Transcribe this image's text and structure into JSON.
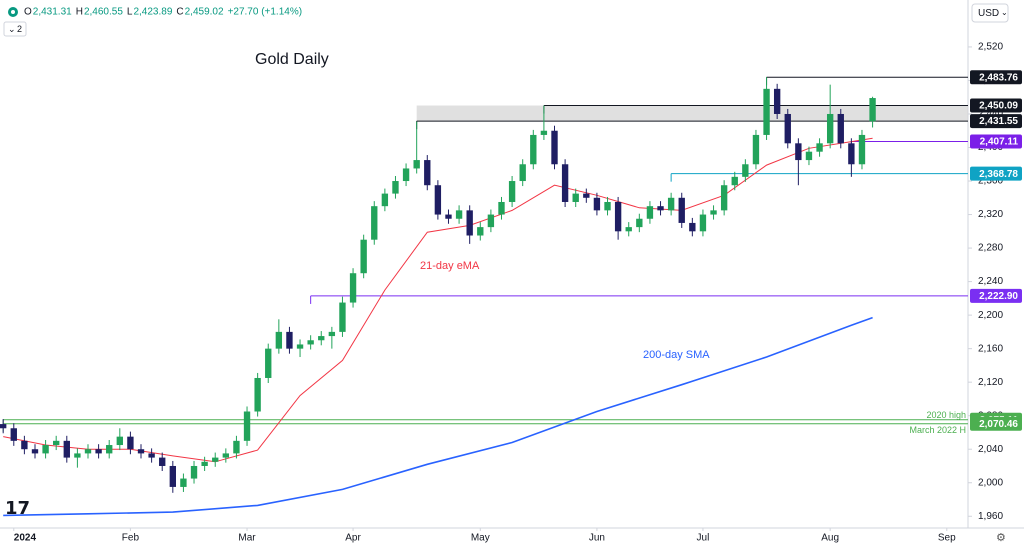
{
  "chart_data": {
    "type": "candlestick",
    "title": "Gold Daily",
    "currency": "USD",
    "interval_badge": "2",
    "header": [
      {
        "key": "O",
        "value": "2,431.31"
      },
      {
        "key": "H",
        "value": "2,460.55"
      },
      {
        "key": "L",
        "value": "2,423.89"
      },
      {
        "key": "C",
        "value": "2,459.02"
      }
    ],
    "change": "+27.70 (+1.14%)",
    "up_color": "#22a35a",
    "down_color": "#1f1e63",
    "xlim": [
      -0.3,
      91
    ],
    "xticks": [
      {
        "value": 1,
        "label": "2024"
      },
      {
        "value": 12,
        "label": "Feb"
      },
      {
        "value": 23,
        "label": "Mar"
      },
      {
        "value": 33,
        "label": "Apr"
      },
      {
        "value": 45,
        "label": "May"
      },
      {
        "value": 56,
        "label": "Jun"
      },
      {
        "value": 66,
        "label": "Jul"
      },
      {
        "value": 78,
        "label": "Aug"
      },
      {
        "value": 89,
        "label": "Sep"
      }
    ],
    "ylim": [
      1946,
      2576
    ],
    "yticks": [
      {
        "value": 1960,
        "label": "1,960"
      },
      {
        "value": 2000,
        "label": "2,000"
      },
      {
        "value": 2040,
        "label": "2,040"
      },
      {
        "value": 2080,
        "label": "2,080"
      },
      {
        "value": 2120,
        "label": "2,120"
      },
      {
        "value": 2160,
        "label": "2,160"
      },
      {
        "value": 2200,
        "label": "2,200"
      },
      {
        "value": 2240,
        "label": "2,240"
      },
      {
        "value": 2280,
        "label": "2,280"
      },
      {
        "value": 2320,
        "label": "2,320"
      },
      {
        "value": 2360,
        "label": "2,360"
      },
      {
        "value": 2400,
        "label": "2,400"
      },
      {
        "value": 2440,
        "label": "2,440"
      },
      {
        "value": 2480,
        "label": "2,480"
      },
      {
        "value": 2520,
        "label": "2,520"
      }
    ],
    "grid": false,
    "ohlc": {
      "open": [
        2070,
        2065,
        2050,
        2040,
        2035,
        2045,
        2050,
        2030,
        2035,
        2040,
        2035,
        2045,
        2055,
        2040,
        2035,
        2030,
        2020,
        1995,
        2005,
        2020,
        2025,
        2030,
        2035,
        2050,
        2085,
        2125,
        2160,
        2180,
        2160,
        2165,
        2170,
        2175,
        2180,
        2215,
        2250,
        2290,
        2330,
        2345,
        2360,
        2375,
        2385,
        2355,
        2320,
        2315,
        2325,
        2295,
        2305,
        2320,
        2335,
        2360,
        2380,
        2415,
        2420,
        2380,
        2335,
        2345,
        2340,
        2325,
        2335,
        2300,
        2305,
        2315,
        2330,
        2325,
        2340,
        2310,
        2300,
        2320,
        2325,
        2355,
        2365,
        2380,
        2415,
        2470,
        2440,
        2405,
        2385,
        2395,
        2405,
        2440,
        2405,
        2380,
        2431.31
      ],
      "high": [
        2076,
        2071,
        2056,
        2046,
        2051,
        2056,
        2056,
        2041,
        2046,
        2046,
        2051,
        2065,
        2061,
        2046,
        2041,
        2036,
        2026,
        2011,
        2026,
        2031,
        2036,
        2041,
        2056,
        2091,
        2131,
        2166,
        2195,
        2186,
        2171,
        2176,
        2181,
        2186,
        2222,
        2256,
        2296,
        2336,
        2351,
        2366,
        2381,
        2431,
        2391,
        2361,
        2326,
        2331,
        2331,
        2311,
        2326,
        2341,
        2366,
        2386,
        2421,
        2450,
        2426,
        2386,
        2351,
        2351,
        2346,
        2341,
        2341,
        2311,
        2321,
        2336,
        2336,
        2346,
        2346,
        2316,
        2326,
        2331,
        2361,
        2371,
        2386,
        2421,
        2484,
        2476,
        2446,
        2411,
        2401,
        2411,
        2475,
        2446,
        2411,
        2421,
        2460.55
      ],
      "low": [
        2059,
        2044,
        2034,
        2029,
        2029,
        2039,
        2024,
        2018,
        2029,
        2029,
        2029,
        2039,
        2034,
        2029,
        2024,
        2014,
        1988,
        1989,
        1999,
        2014,
        2019,
        2024,
        2029,
        2044,
        2079,
        2119,
        2154,
        2154,
        2150,
        2159,
        2164,
        2160,
        2174,
        2209,
        2244,
        2284,
        2324,
        2339,
        2354,
        2369,
        2349,
        2314,
        2309,
        2309,
        2285,
        2289,
        2299,
        2314,
        2329,
        2354,
        2374,
        2409,
        2374,
        2329,
        2329,
        2334,
        2319,
        2319,
        2290,
        2294,
        2299,
        2309,
        2319,
        2319,
        2304,
        2294,
        2294,
        2314,
        2319,
        2349,
        2359,
        2374,
        2409,
        2434,
        2399,
        2355,
        2379,
        2389,
        2399,
        2399,
        2365,
        2374,
        2423.89
      ],
      "close": [
        2065,
        2050,
        2040,
        2035,
        2045,
        2050,
        2030,
        2035,
        2040,
        2035,
        2045,
        2055,
        2040,
        2035,
        2030,
        2020,
        1995,
        2005,
        2020,
        2025,
        2030,
        2035,
        2050,
        2085,
        2125,
        2160,
        2180,
        2160,
        2165,
        2170,
        2175,
        2180,
        2215,
        2250,
        2290,
        2330,
        2345,
        2360,
        2375,
        2385,
        2355,
        2320,
        2315,
        2325,
        2295,
        2305,
        2320,
        2335,
        2360,
        2380,
        2415,
        2420,
        2380,
        2335,
        2345,
        2340,
        2325,
        2335,
        2300,
        2305,
        2315,
        2330,
        2325,
        2340,
        2310,
        2300,
        2320,
        2325,
        2355,
        2365,
        2380,
        2415,
        2470,
        2440,
        2405,
        2385,
        2395,
        2405,
        2440,
        2405,
        2380,
        2415,
        2459.02
      ]
    },
    "lines": [
      {
        "name": "21-day eMA",
        "color": "#f23645",
        "x": [
          0,
          4,
          8,
          12,
          16,
          20,
          24,
          28,
          32,
          36,
          40,
          44,
          48,
          52,
          56,
          60,
          64,
          68,
          72,
          76,
          80,
          82
        ],
        "values": [
          2055,
          2045,
          2040,
          2040,
          2032,
          2025,
          2039,
          2104,
          2146,
          2230,
          2299,
          2307,
          2325,
          2355,
          2343,
          2328,
          2325,
          2343,
          2379,
          2399,
          2407,
          2411
        ]
      },
      {
        "name": "200-day SMA",
        "color": "#2962ff",
        "x": [
          0,
          8,
          16,
          24,
          32,
          40,
          48,
          56,
          64,
          72,
          80,
          82
        ],
        "values": [
          1961,
          1963,
          1965,
          1973,
          1992,
          2022,
          2048,
          2085,
          2117,
          2150,
          2188,
          2197
        ]
      }
    ],
    "levels": [
      {
        "value": 2483.76,
        "label": "2,483.76",
        "color": "#131722",
        "from": 72
      },
      {
        "value": 2450.09,
        "label": "2,450.09",
        "color": "#131722",
        "from": 51,
        "shade_to_next": true
      },
      {
        "value": 2431.55,
        "label": "2,431.55",
        "color": "#131722",
        "from": 39
      },
      {
        "value": 2407.11,
        "label": "2,407.11",
        "color": "#7b1fe8",
        "from": 80
      },
      {
        "value": 2368.78,
        "label": "2,368.78",
        "color": "#0fa3c4",
        "from": 63
      },
      {
        "value": 2222.9,
        "label": "2,222.90",
        "color": "#7a2ff2",
        "from": 29
      },
      {
        "value": 2075.11,
        "label": "2,075.11",
        "color": "#4caf50",
        "from": 0,
        "note": "2020 high"
      },
      {
        "value": 2070.46,
        "label": "2,070.46",
        "color": "#4caf50",
        "from": 0,
        "note": "March 2022 H"
      }
    ]
  }
}
